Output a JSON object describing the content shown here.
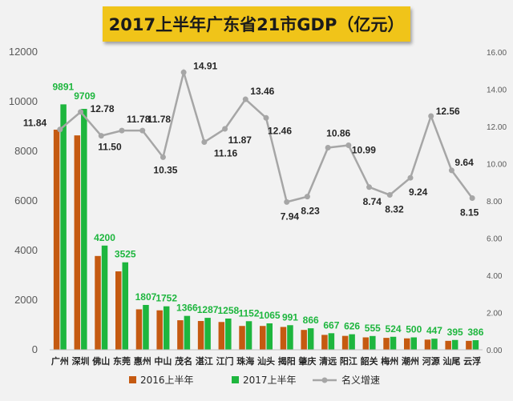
{
  "chart_data": {
    "type": "bar",
    "title": "2017上半年广东省21市GDP（亿元）",
    "categories": [
      "广州",
      "深圳",
      "佛山",
      "东莞",
      "惠州",
      "中山",
      "茂名",
      "湛江",
      "江门",
      "珠海",
      "汕头",
      "揭阳",
      "肇庆",
      "清远",
      "阳江",
      "韶关",
      "梅州",
      "潮州",
      "河源",
      "汕尾",
      "云浮"
    ],
    "series": [
      {
        "name": "2016上半年",
        "kind": "bar",
        "axis": "left",
        "color": "#c55a11",
        "values": [
          8870,
          8640,
          3780,
          3160,
          1630,
          1590,
          1190,
          1160,
          1120,
          960,
          960,
          920,
          800,
          600,
          560,
          500,
          480,
          460,
          410,
          360,
          360
        ]
      },
      {
        "name": "2017上半年",
        "kind": "bar",
        "axis": "left",
        "color": "#1eb63e",
        "values": [
          9891,
          9709,
          4200,
          3525,
          1807,
          1752,
          1366,
          1287,
          1258,
          1152,
          1065,
          991,
          866,
          667,
          626,
          555,
          524,
          500,
          447,
          395,
          386
        ]
      },
      {
        "name": "名义增速",
        "kind": "line",
        "axis": "right",
        "color": "#a6a6a6",
        "values": [
          11.84,
          12.78,
          11.5,
          11.78,
          11.78,
          10.35,
          14.91,
          11.16,
          11.87,
          13.46,
          12.46,
          7.94,
          8.23,
          10.86,
          10.99,
          8.74,
          8.32,
          9.24,
          12.56,
          9.64,
          8.15
        ]
      }
    ],
    "y_left": {
      "ylim": [
        0,
        12000
      ],
      "ticks": [
        0,
        2000,
        4000,
        6000,
        8000,
        10000,
        12000
      ]
    },
    "y_right": {
      "ylim": [
        0,
        16
      ],
      "ticks": [
        "0.00",
        "2.00",
        "4.00",
        "6.00",
        "8.00",
        "10.00",
        "12.00",
        "14.00",
        "16.00"
      ]
    },
    "legend": {
      "position": "bottom",
      "items": [
        "2016上半年",
        "2017上半年",
        "名义增速"
      ]
    },
    "grid": false,
    "bar_labels": [
      "9891",
      "9709",
      "4200",
      "3525",
      "1807",
      "1752",
      "1366",
      "1287",
      "1258",
      "1152",
      "1065",
      "991",
      "866",
      "667",
      "626",
      "555",
      "524",
      "500",
      "447",
      "395",
      "386"
    ],
    "line_labels": [
      "11.84",
      "12.78",
      "11.50",
      "11.78",
      "11.78",
      "10.35",
      "14.91",
      "11.16",
      "11.87",
      "13.46",
      "12.46",
      "7.94",
      "8.23",
      "10.86",
      "10.99",
      "8.74",
      "8.32",
      "9.24",
      "12.56",
      "9.64",
      "8.15"
    ]
  }
}
